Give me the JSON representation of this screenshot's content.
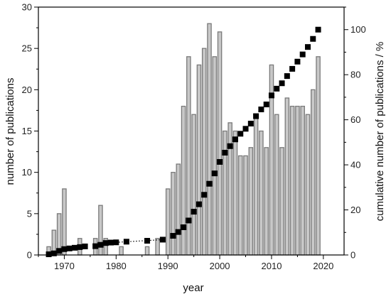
{
  "chart_data": {
    "type": "bar",
    "title": "",
    "xlabel": "year",
    "ylabel": "number of publications",
    "y2label": "cumulative number of publications / %",
    "xlim": [
      1965,
      2024
    ],
    "ylim": [
      0,
      30
    ],
    "y2lim": [
      0,
      110
    ],
    "xticks": [
      1970,
      1980,
      1990,
      2000,
      2010,
      2020
    ],
    "xtick_labels": [
      "1970",
      "1980",
      "1990",
      "2000",
      "2010",
      "2020"
    ],
    "yticks": [
      0,
      5,
      10,
      15,
      20,
      25,
      30
    ],
    "ytick_labels": [
      "0",
      "5",
      "10",
      "15",
      "20",
      "25",
      "30"
    ],
    "y2ticks": [
      0,
      20,
      40,
      60,
      80,
      100
    ],
    "y2tick_labels": [
      "0",
      "20",
      "40",
      "60",
      "80",
      "100"
    ],
    "grid": false,
    "legend": "none",
    "colors": {
      "bar_fill": "#c8c8c8",
      "bar_stroke": "#7a7a7a",
      "marker": "#000000",
      "axis": "#000000"
    },
    "series": [
      {
        "type": "bar",
        "axis": "left",
        "x": [
          1967,
          1968,
          1969,
          1970,
          1973,
          1976,
          1977,
          1978,
          1981,
          1986,
          1988,
          1990,
          1991,
          1992,
          1993,
          1994,
          1995,
          1996,
          1997,
          1998,
          1999,
          2000,
          2001,
          2002,
          2003,
          2004,
          2005,
          2006,
          2007,
          2008,
          2009,
          2010,
          2011,
          2012,
          2013,
          2014,
          2015,
          2016,
          2017,
          2018,
          2019
        ],
        "values": [
          1,
          3,
          5,
          8,
          2,
          2,
          6,
          2,
          1,
          1,
          2,
          8,
          10,
          11,
          18,
          24,
          17,
          23,
          25,
          28,
          24,
          27,
          15,
          16,
          15,
          12,
          12,
          13,
          17,
          15,
          13,
          23,
          17,
          13,
          19,
          18,
          18,
          18,
          17,
          20,
          24
        ]
      },
      {
        "type": "scatter",
        "axis": "right",
        "marker": "square",
        "x": [
          1967,
          1968,
          1969,
          1970,
          1971,
          1972,
          1973,
          1974,
          1976,
          1977,
          1978,
          1979,
          1980,
          1982,
          1986,
          1989,
          1991,
          1992,
          1993,
          1994,
          1995,
          1996,
          1997,
          1998,
          1999,
          2000,
          2001,
          2002,
          2003,
          2004,
          2005,
          2006,
          2007,
          2008,
          2009,
          2010,
          2011,
          2012,
          2013,
          2014,
          2015,
          2016,
          2017,
          2018,
          2019
        ],
        "values": [
          0.3,
          0.7,
          1.8,
          2.6,
          2.9,
          3.2,
          3.5,
          3.8,
          3.9,
          4.5,
          5.3,
          5.5,
          5.6,
          5.9,
          6.3,
          6.8,
          8.5,
          10.2,
          12.3,
          15.3,
          19.2,
          22.5,
          26.7,
          31.6,
          36.2,
          41.3,
          45.4,
          48.3,
          51.3,
          53.8,
          56.0,
          58.3,
          61.6,
          64.6,
          66.8,
          70.8,
          73.8,
          76.2,
          79.4,
          82.6,
          85.8,
          89.0,
          92.3,
          95.9,
          100.0
        ]
      },
      {
        "type": "line",
        "axis": "right",
        "style": "dotted",
        "x": [
          1980,
          1989
        ],
        "values": [
          5.6,
          6.8
        ]
      }
    ]
  }
}
